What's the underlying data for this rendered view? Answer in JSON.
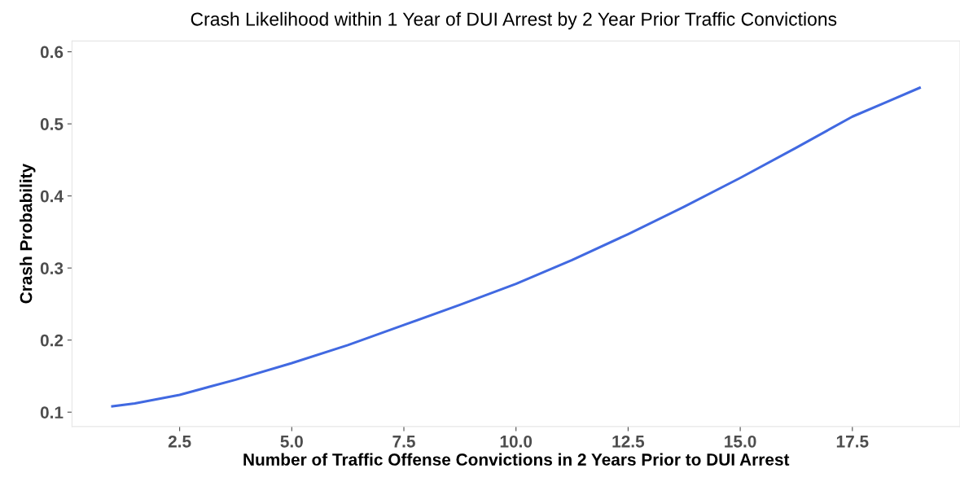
{
  "chart_data": {
    "type": "line",
    "title": "Crash Likelihood within 1 Year of DUI Arrest by 2 Year Prior Traffic Convictions",
    "xlabel": "Number of Traffic Offense Convictions in 2 Years Prior to DUI Arrest",
    "ylabel": "Crash Probability",
    "x": [
      1,
      1.5,
      2.5,
      3.75,
      5,
      6.25,
      7.5,
      8.75,
      10,
      11.25,
      12.5,
      13.75,
      15,
      16.25,
      17.5,
      18.25,
      19
    ],
    "series": [
      {
        "color": "#4169e1",
        "values": [
          0.108,
          0.112,
          0.124,
          0.145,
          0.168,
          0.193,
          0.221,
          0.249,
          0.278,
          0.311,
          0.347,
          0.385,
          0.425,
          0.467,
          0.51,
          0.53,
          0.55
        ]
      }
    ],
    "xlim": [
      0.1,
      19.9
    ],
    "ylim": [
      0.08,
      0.615
    ],
    "xticks": [
      {
        "value": 2.5,
        "label": "2.5"
      },
      {
        "value": 5,
        "label": "5.0"
      },
      {
        "value": 7.5,
        "label": "7.5"
      },
      {
        "value": 10,
        "label": "10.0"
      },
      {
        "value": 12.5,
        "label": "12.5"
      },
      {
        "value": 15,
        "label": "15.0"
      },
      {
        "value": 17.5,
        "label": "17.5"
      }
    ],
    "yticks": [
      0.1,
      0.2,
      0.3,
      0.4,
      0.5,
      0.6
    ],
    "grid": false,
    "marker": "none",
    "line_style": "solid"
  }
}
